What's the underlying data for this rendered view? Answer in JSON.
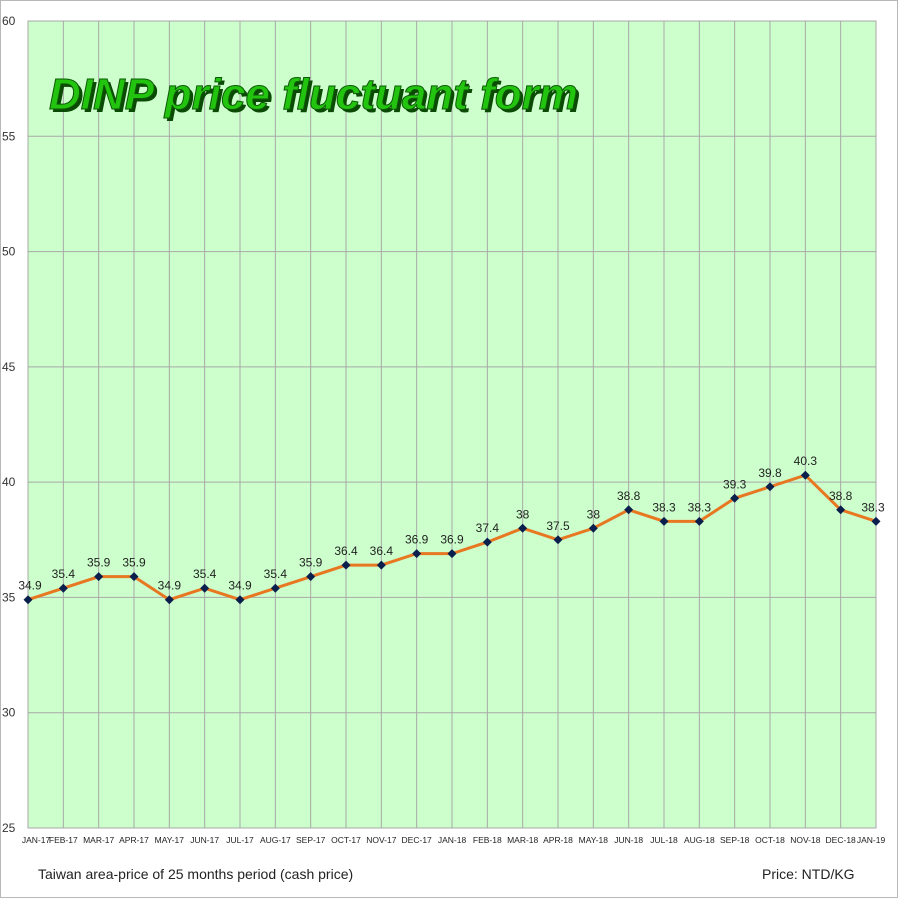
{
  "chart_data": {
    "type": "line",
    "title": "DINP price fluctuant form",
    "footnote_left": "Taiwan area-price of 25 months period (cash price)",
    "footnote_right": "Price: NTD/KG",
    "ylim": [
      25,
      60
    ],
    "yticks": [
      25,
      30,
      35,
      40,
      45,
      50,
      55,
      60
    ],
    "grid": true,
    "categories": [
      "JAN-17",
      "FEB-17",
      "MAR-17",
      "APR-17",
      "MAY-17",
      "JUN-17",
      "JUL-17",
      "AUG-17",
      "SEP-17",
      "OCT-17",
      "NOV-17",
      "DEC-17",
      "JAN-18",
      "FEB-18",
      "MAR-18",
      "APR-18",
      "MAY-18",
      "JUN-18",
      "JUL-18",
      "AUG-18",
      "SEP-18",
      "OCT-18",
      "NOV-18",
      "DEC-18",
      "JAN-19"
    ],
    "values": [
      34.9,
      35.4,
      35.9,
      35.9,
      34.9,
      35.4,
      34.9,
      35.4,
      35.9,
      36.4,
      36.4,
      36.9,
      36.9,
      37.4,
      38,
      37.5,
      38,
      38.8,
      38.3,
      38.3,
      39.3,
      39.8,
      40.3,
      38.8,
      38.3
    ],
    "colors": {
      "plot_background": "#ccffcc",
      "grid": "#a8a8a8",
      "line": "#e87722",
      "marker": "#0b1f4d",
      "title_fill": "#22c40f",
      "title_outline": "#0d5a06"
    }
  }
}
